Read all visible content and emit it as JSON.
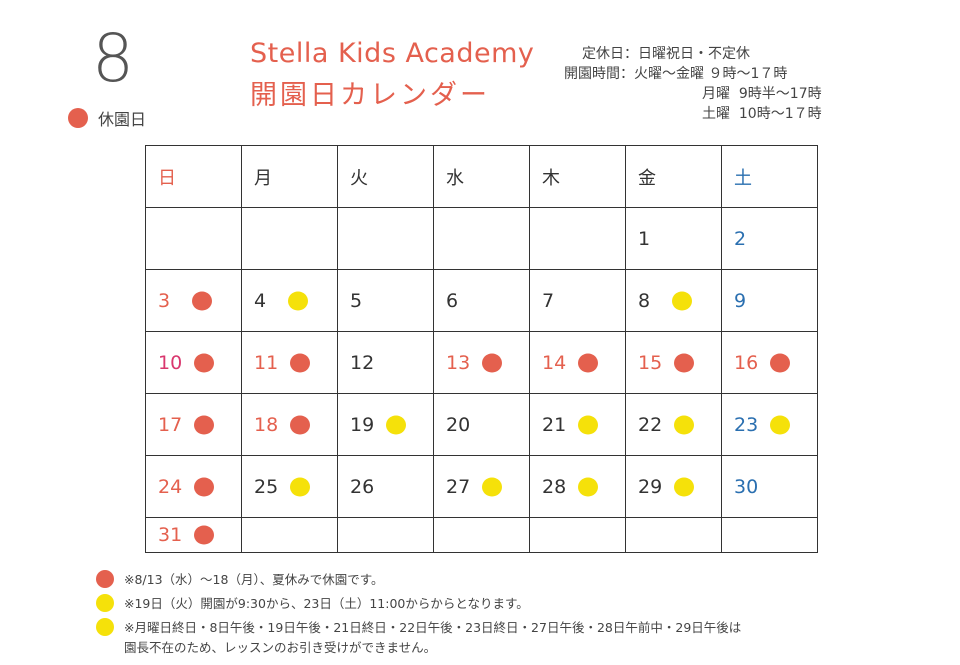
{
  "month": "8",
  "legend": {
    "label": "休園日",
    "color": "#e4604e"
  },
  "title": {
    "en": "Stella Kids Academy",
    "jp": "開園日カレンダー"
  },
  "hours": [
    "定休日：日曜祝日・不定休",
    "開園時間：火曜～金曜 ９時～1７時",
    "月曜  9時半～17時",
    "土曜  10時～1７時"
  ],
  "weekdays": [
    "日",
    "月",
    "火",
    "水",
    "木",
    "金",
    "土"
  ],
  "weeks": [
    [
      null,
      null,
      null,
      null,
      null,
      {
        "d": "1",
        "c": "norm"
      },
      {
        "d": "2",
        "c": "sat"
      }
    ],
    [
      {
        "d": "3",
        "c": "red",
        "dot": "red"
      },
      {
        "d": "4",
        "c": "norm",
        "dot": "yellow"
      },
      {
        "d": "5",
        "c": "norm"
      },
      {
        "d": "6",
        "c": "norm"
      },
      {
        "d": "7",
        "c": "norm"
      },
      {
        "d": "8",
        "c": "norm",
        "dot": "yellow"
      },
      {
        "d": "9",
        "c": "sat"
      }
    ],
    [
      {
        "d": "10",
        "c": "sun",
        "dot": "red"
      },
      {
        "d": "11",
        "c": "red",
        "dot": "red"
      },
      {
        "d": "12",
        "c": "norm"
      },
      {
        "d": "13",
        "c": "red",
        "dot": "red"
      },
      {
        "d": "14",
        "c": "red",
        "dot": "red"
      },
      {
        "d": "15",
        "c": "red",
        "dot": "red"
      },
      {
        "d": "16",
        "c": "red",
        "dot": "red"
      }
    ],
    [
      {
        "d": "17",
        "c": "red",
        "dot": "red"
      },
      {
        "d": "18",
        "c": "red",
        "dot": "red"
      },
      {
        "d": "19",
        "c": "norm",
        "dot": "yellow"
      },
      {
        "d": "20",
        "c": "norm"
      },
      {
        "d": "21",
        "c": "norm",
        "dot": "yellow"
      },
      {
        "d": "22",
        "c": "norm",
        "dot": "yellow"
      },
      {
        "d": "23",
        "c": "sat",
        "dot": "yellow"
      }
    ],
    [
      {
        "d": "24",
        "c": "red",
        "dot": "red"
      },
      {
        "d": "25",
        "c": "norm",
        "dot": "yellow"
      },
      {
        "d": "26",
        "c": "norm"
      },
      {
        "d": "27",
        "c": "norm",
        "dot": "yellow"
      },
      {
        "d": "28",
        "c": "norm",
        "dot": "yellow"
      },
      {
        "d": "29",
        "c": "norm",
        "dot": "yellow"
      },
      {
        "d": "30",
        "c": "sat"
      }
    ],
    [
      {
        "d": "31",
        "c": "red",
        "dot": "red"
      },
      null,
      null,
      null,
      null,
      null,
      null
    ]
  ],
  "notes": [
    {
      "dot": "red",
      "text": "※8/13（水）～18（月）、夏休みで休園です。"
    },
    {
      "dot": "yellow",
      "text": "※19日（火）開園が9:30から、23日（土）11:00からからとなります。"
    },
    {
      "dot": "yellow",
      "text": "※月曜日終日・8日午後・19日午後・21日終日・22日午後・23日終日・27日午後・28日午前中・29日午後は\n園長不在のため、レッスンのお引き受けができません。"
    }
  ],
  "colors": {
    "red": "#e4604e",
    "yellow": "#f5e10a",
    "sunday": "#d9376e",
    "saturday": "#2a6fb0"
  }
}
